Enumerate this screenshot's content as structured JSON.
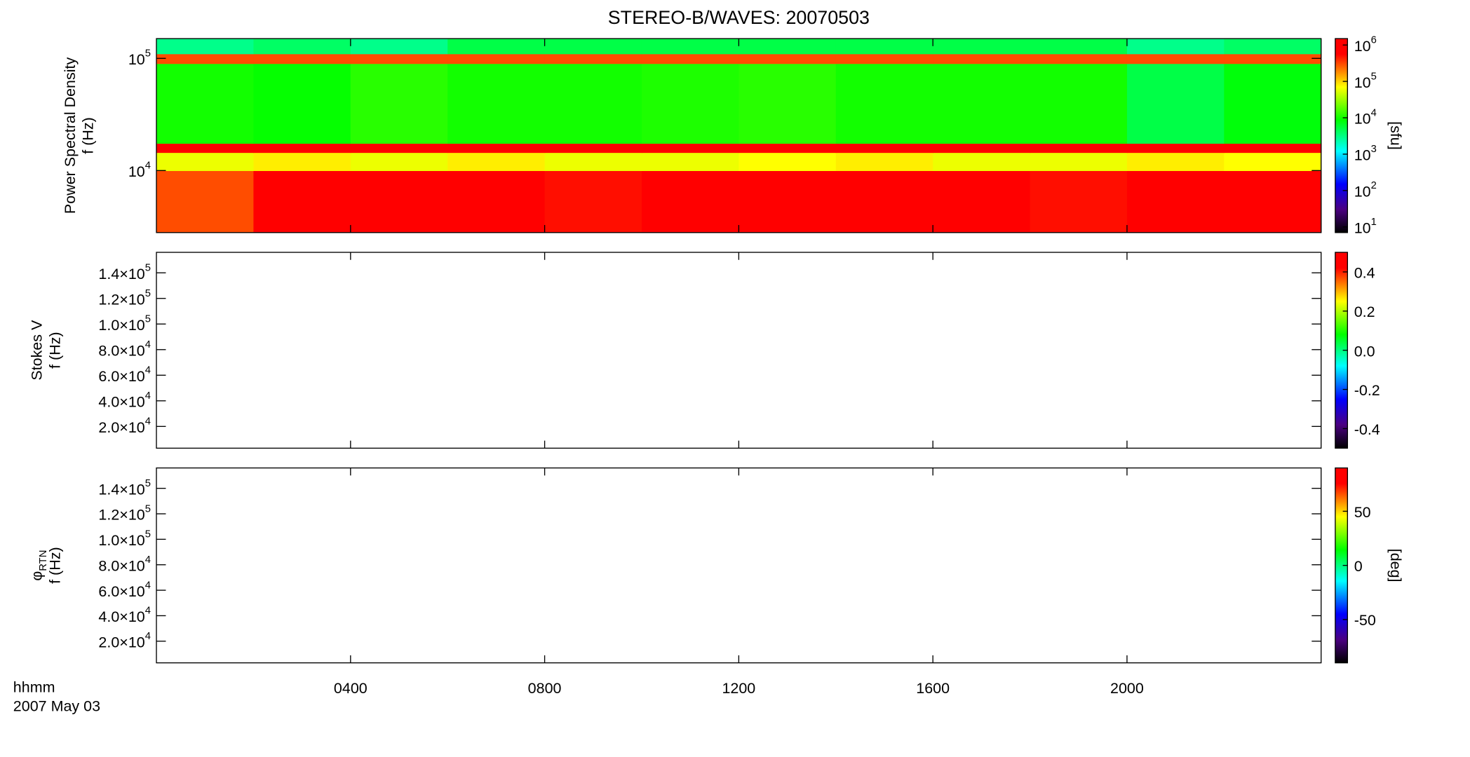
{
  "title": "STEREO-B/WAVES: 20070503",
  "time_axis": {
    "label": "hhmm",
    "date": "2007 May 03",
    "xlim": [
      0,
      24
    ],
    "xticks": [
      {
        "value": 4,
        "label": "0400"
      },
      {
        "value": 8,
        "label": "0800"
      },
      {
        "value": 12,
        "label": "1200"
      },
      {
        "value": 16,
        "label": "1600"
      },
      {
        "value": 20,
        "label": "2000"
      }
    ]
  },
  "chart_data": [
    {
      "type": "heatmap",
      "ylabel": [
        "Power Spectral Density",
        "f (Hz)"
      ],
      "ylog": true,
      "ylim": [
        2800,
        150000
      ],
      "yticks": [
        {
          "value": 10000,
          "label": "10",
          "exponent": "4"
        },
        {
          "value": 100000,
          "label": "10",
          "exponent": "5"
        }
      ],
      "x_bins": [
        0,
        2,
        4,
        6,
        8,
        10,
        12,
        14,
        16,
        18,
        20,
        22,
        24
      ],
      "y_bins": [
        2800,
        10000,
        14500,
        17500,
        90000,
        110000,
        150000
      ],
      "z": [
        [
          300000,
          1000000,
          600000,
          1000000,
          500000,
          600000,
          700000,
          800000,
          600000,
          500000,
          1000000,
          700000
        ],
        [
          60000,
          80000,
          60000,
          80000,
          60000,
          60000,
          70000,
          80000,
          60000,
          60000,
          80000,
          70000
        ],
        [
          800000,
          800000,
          800000,
          800000,
          800000,
          800000,
          800000,
          800000,
          800000,
          800000,
          800000,
          800000
        ],
        [
          10000,
          9000,
          12000,
          10000,
          10000,
          11000,
          12000,
          10000,
          10000,
          10000,
          5000,
          8000
        ],
        [
          300000,
          300000,
          300000,
          300000,
          300000,
          300000,
          300000,
          300000,
          300000,
          300000,
          300000,
          300000
        ],
        [
          3000,
          4000,
          3000,
          5000,
          5000,
          5000,
          5000,
          5000,
          5000,
          5000,
          3000,
          4000
        ]
      ],
      "colorbar": {
        "log": true,
        "clim": [
          7,
          1500000
        ],
        "unit": "[sfu]",
        "ticks": [
          {
            "value": 10,
            "label": "10",
            "exponent": "1"
          },
          {
            "value": 100,
            "label": "10",
            "exponent": "2"
          },
          {
            "value": 1000,
            "label": "10",
            "exponent": "3"
          },
          {
            "value": 10000,
            "label": "10",
            "exponent": "4"
          },
          {
            "value": 100000,
            "label": "10",
            "exponent": "5"
          },
          {
            "value": 1000000,
            "label": "10",
            "exponent": "6"
          }
        ]
      }
    },
    {
      "type": "heatmap",
      "ylabel": [
        "Stokes V",
        "f (Hz)"
      ],
      "ylog": false,
      "ylim": [
        3000,
        156000
      ],
      "yticks": [
        {
          "value": 20000,
          "label": "2.0×10",
          "exponent": "4"
        },
        {
          "value": 40000,
          "label": "4.0×10",
          "exponent": "4"
        },
        {
          "value": 60000,
          "label": "6.0×10",
          "exponent": "4"
        },
        {
          "value": 80000,
          "label": "8.0×10",
          "exponent": "4"
        },
        {
          "value": 100000,
          "label": "1.0×10",
          "exponent": "5"
        },
        {
          "value": 120000,
          "label": "1.2×10",
          "exponent": "5"
        },
        {
          "value": 140000,
          "label": "1.4×10",
          "exponent": "5"
        }
      ],
      "colorbar": {
        "log": false,
        "clim": [
          -0.5,
          0.5
        ],
        "ticks": [
          -0.4,
          -0.2,
          {
            "value": 0,
            "label": "0.0"
          },
          0.2,
          0.4
        ]
      }
    },
    {
      "type": "heatmap",
      "ylabel": [
        "φ",
        "f (Hz)"
      ],
      "ylabel_sub": "RTN",
      "ylog": false,
      "ylim": [
        3000,
        156000
      ],
      "yticks": [
        {
          "value": 20000,
          "label": "2.0×10",
          "exponent": "4"
        },
        {
          "value": 40000,
          "label": "4.0×10",
          "exponent": "4"
        },
        {
          "value": 60000,
          "label": "6.0×10",
          "exponent": "4"
        },
        {
          "value": 80000,
          "label": "8.0×10",
          "exponent": "4"
        },
        {
          "value": 100000,
          "label": "1.0×10",
          "exponent": "5"
        },
        {
          "value": 120000,
          "label": "1.2×10",
          "exponent": "5"
        },
        {
          "value": 140000,
          "label": "1.4×10",
          "exponent": "5"
        }
      ],
      "colorbar": {
        "log": false,
        "clim": [
          -90,
          90
        ],
        "unit": "[deg]",
        "ticks": [
          -50,
          0,
          50
        ]
      }
    }
  ]
}
